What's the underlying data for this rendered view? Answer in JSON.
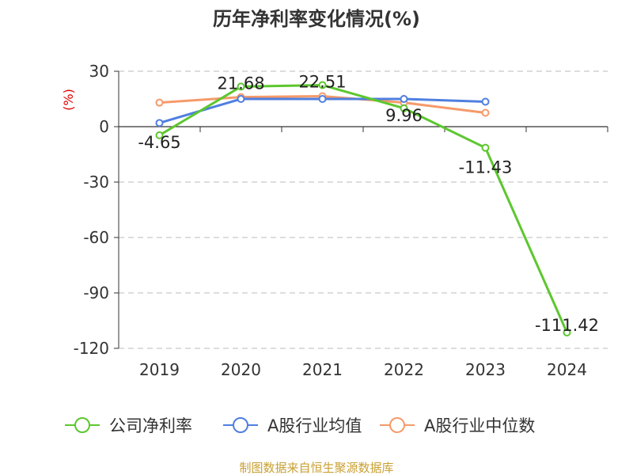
{
  "chart_data": {
    "type": "line",
    "title": "历年净利率变化情况(%)",
    "ylabel": "(%)",
    "xlabel": "",
    "categories": [
      "2019",
      "2020",
      "2021",
      "2022",
      "2023",
      "2024"
    ],
    "y_ticks": [
      "30",
      "0",
      "-30",
      "-60",
      "-90",
      "-120"
    ],
    "ylim": [
      -120,
      30
    ],
    "grid": true,
    "legend_position": "bottom",
    "series": [
      {
        "name": "公司净利率",
        "color": "#5cc72e",
        "values": [
          -4.65,
          21.68,
          22.51,
          9.96,
          -11.43,
          -111.42
        ],
        "labels": [
          "-4.65",
          "21.68",
          "22.51",
          "9.96",
          "-11.43",
          "-111.42"
        ]
      },
      {
        "name": "A股行业均值",
        "color": "#4f7fe0",
        "values": [
          2,
          15,
          15,
          15,
          13.5,
          null
        ]
      },
      {
        "name": "A股行业中位数",
        "color": "#f59a6a",
        "values": [
          13,
          16,
          16.5,
          13,
          7.5,
          null
        ]
      }
    ]
  },
  "source_note": "制图数据来自恒生聚源数据库"
}
